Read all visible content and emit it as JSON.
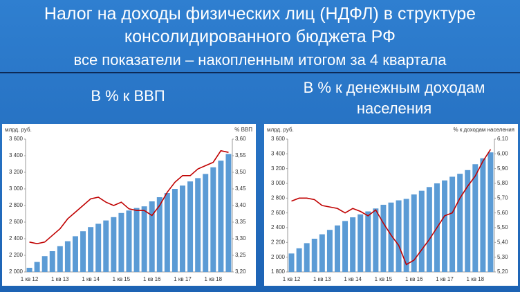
{
  "header": {
    "title": "Налог на доходы физических лиц (НДФЛ) в структуре консолидированного бюджета РФ",
    "subtitle": "все показатели – накопленным итогом за 4 квартала"
  },
  "panels": [
    {
      "heading": "В % к ВВП"
    },
    {
      "heading": "В % к денежным доходам населения"
    }
  ],
  "chart_data": [
    {
      "type": "bar",
      "ylabel": "млрд. руб.",
      "y2label": "% ВВП",
      "categories": [
        "1 кв 12",
        null,
        null,
        null,
        "1 кв 13",
        null,
        null,
        null,
        "1 кв 14",
        null,
        null,
        null,
        "1 кв 15",
        null,
        null,
        null,
        "1 кв 16",
        null,
        null,
        null,
        "1 кв 17",
        null,
        null,
        null,
        "1 кв 18",
        null,
        null
      ],
      "series": [
        {
          "type": "bar",
          "color": "#5b9bd5",
          "values": [
            2050,
            2120,
            2190,
            2250,
            2310,
            2370,
            2430,
            2490,
            2540,
            2580,
            2620,
            2660,
            2710,
            2740,
            2770,
            2790,
            2850,
            2900,
            2950,
            3000,
            3040,
            3090,
            3130,
            3180,
            3260,
            3340,
            3420
          ]
        },
        {
          "type": "line",
          "axis": "y2",
          "color": "#c00000",
          "values": [
            3.29,
            3.285,
            3.29,
            3.31,
            3.33,
            3.36,
            3.38,
            3.4,
            3.42,
            3.425,
            3.41,
            3.4,
            3.41,
            3.39,
            3.385,
            3.385,
            3.37,
            3.4,
            3.44,
            3.47,
            3.49,
            3.49,
            3.51,
            3.52,
            3.53,
            3.565,
            3.56
          ]
        }
      ],
      "ylim": [
        2000,
        3600
      ],
      "yticks": [
        {
          "value": 2000,
          "label": "2 000"
        },
        {
          "value": 2200,
          "label": "2 200"
        },
        {
          "value": 2400,
          "label": "2 400"
        },
        {
          "value": 2600,
          "label": "2 600"
        },
        {
          "value": 2800,
          "label": "2 800"
        },
        {
          "value": 3000,
          "label": "3 000"
        },
        {
          "value": 3200,
          "label": "3 200"
        },
        {
          "value": 3400,
          "label": "3 400"
        },
        {
          "value": 3600,
          "label": "3 600"
        }
      ],
      "y2lim": [
        3.2,
        3.6
      ],
      "y2ticks": [
        {
          "value": 3.2,
          "label": "3,20"
        },
        {
          "value": 3.25,
          "label": "3,25"
        },
        {
          "value": 3.3,
          "label": "3,30"
        },
        {
          "value": 3.35,
          "label": "3,35"
        },
        {
          "value": 3.4,
          "label": "3,40"
        },
        {
          "value": 3.45,
          "label": "3,45"
        },
        {
          "value": 3.5,
          "label": "3,50"
        },
        {
          "value": 3.55,
          "label": "3,55"
        },
        {
          "value": 3.6,
          "label": "3,60"
        }
      ]
    },
    {
      "type": "bar",
      "ylabel": "млрд. руб.",
      "y2label": "% к доходам населения",
      "categories": [
        "1 кв 12",
        null,
        null,
        null,
        "1 кв 13",
        null,
        null,
        null,
        "1 кв 14",
        null,
        null,
        null,
        "1 кв 15",
        null,
        null,
        null,
        "1 кв 16",
        null,
        null,
        null,
        "1 кв 17",
        null,
        null,
        null,
        "1 кв 18",
        null,
        null
      ],
      "series": [
        {
          "type": "bar",
          "color": "#5b9bd5",
          "values": [
            2050,
            2120,
            2190,
            2250,
            2310,
            2370,
            2430,
            2490,
            2540,
            2580,
            2620,
            2660,
            2710,
            2740,
            2770,
            2790,
            2850,
            2900,
            2950,
            3000,
            3040,
            3090,
            3130,
            3180,
            3260,
            3340,
            3420
          ]
        },
        {
          "type": "line",
          "axis": "y2",
          "color": "#c00000",
          "values": [
            5.68,
            5.7,
            5.7,
            5.69,
            5.65,
            5.64,
            5.63,
            5.6,
            5.63,
            5.61,
            5.58,
            5.62,
            5.53,
            5.45,
            5.38,
            5.25,
            5.28,
            5.35,
            5.42,
            5.5,
            5.58,
            5.6,
            5.7,
            5.78,
            5.85,
            5.95,
            6.03
          ]
        }
      ],
      "ylim": [
        1800,
        3600
      ],
      "yticks": [
        {
          "value": 1800,
          "label": "1 800"
        },
        {
          "value": 2000,
          "label": "2 000"
        },
        {
          "value": 2200,
          "label": "2 200"
        },
        {
          "value": 2400,
          "label": "2 400"
        },
        {
          "value": 2600,
          "label": "2 600"
        },
        {
          "value": 2800,
          "label": "2 800"
        },
        {
          "value": 3000,
          "label": "3 000"
        },
        {
          "value": 3200,
          "label": "3 200"
        },
        {
          "value": 3400,
          "label": "3 400"
        },
        {
          "value": 3600,
          "label": "3 600"
        }
      ],
      "y2lim": [
        5.2,
        6.1
      ],
      "y2ticks": [
        {
          "value": 5.2,
          "label": "5,20"
        },
        {
          "value": 5.3,
          "label": "5,30"
        },
        {
          "value": 5.4,
          "label": "5,40"
        },
        {
          "value": 5.5,
          "label": "5,50"
        },
        {
          "value": 5.6,
          "label": "5,60"
        },
        {
          "value": 5.7,
          "label": "5,70"
        },
        {
          "value": 5.8,
          "label": "5,80"
        },
        {
          "value": 5.9,
          "label": "5,90"
        },
        {
          "value": 6.0,
          "label": "6,00"
        },
        {
          "value": 6.1,
          "label": "6,10"
        }
      ]
    }
  ]
}
